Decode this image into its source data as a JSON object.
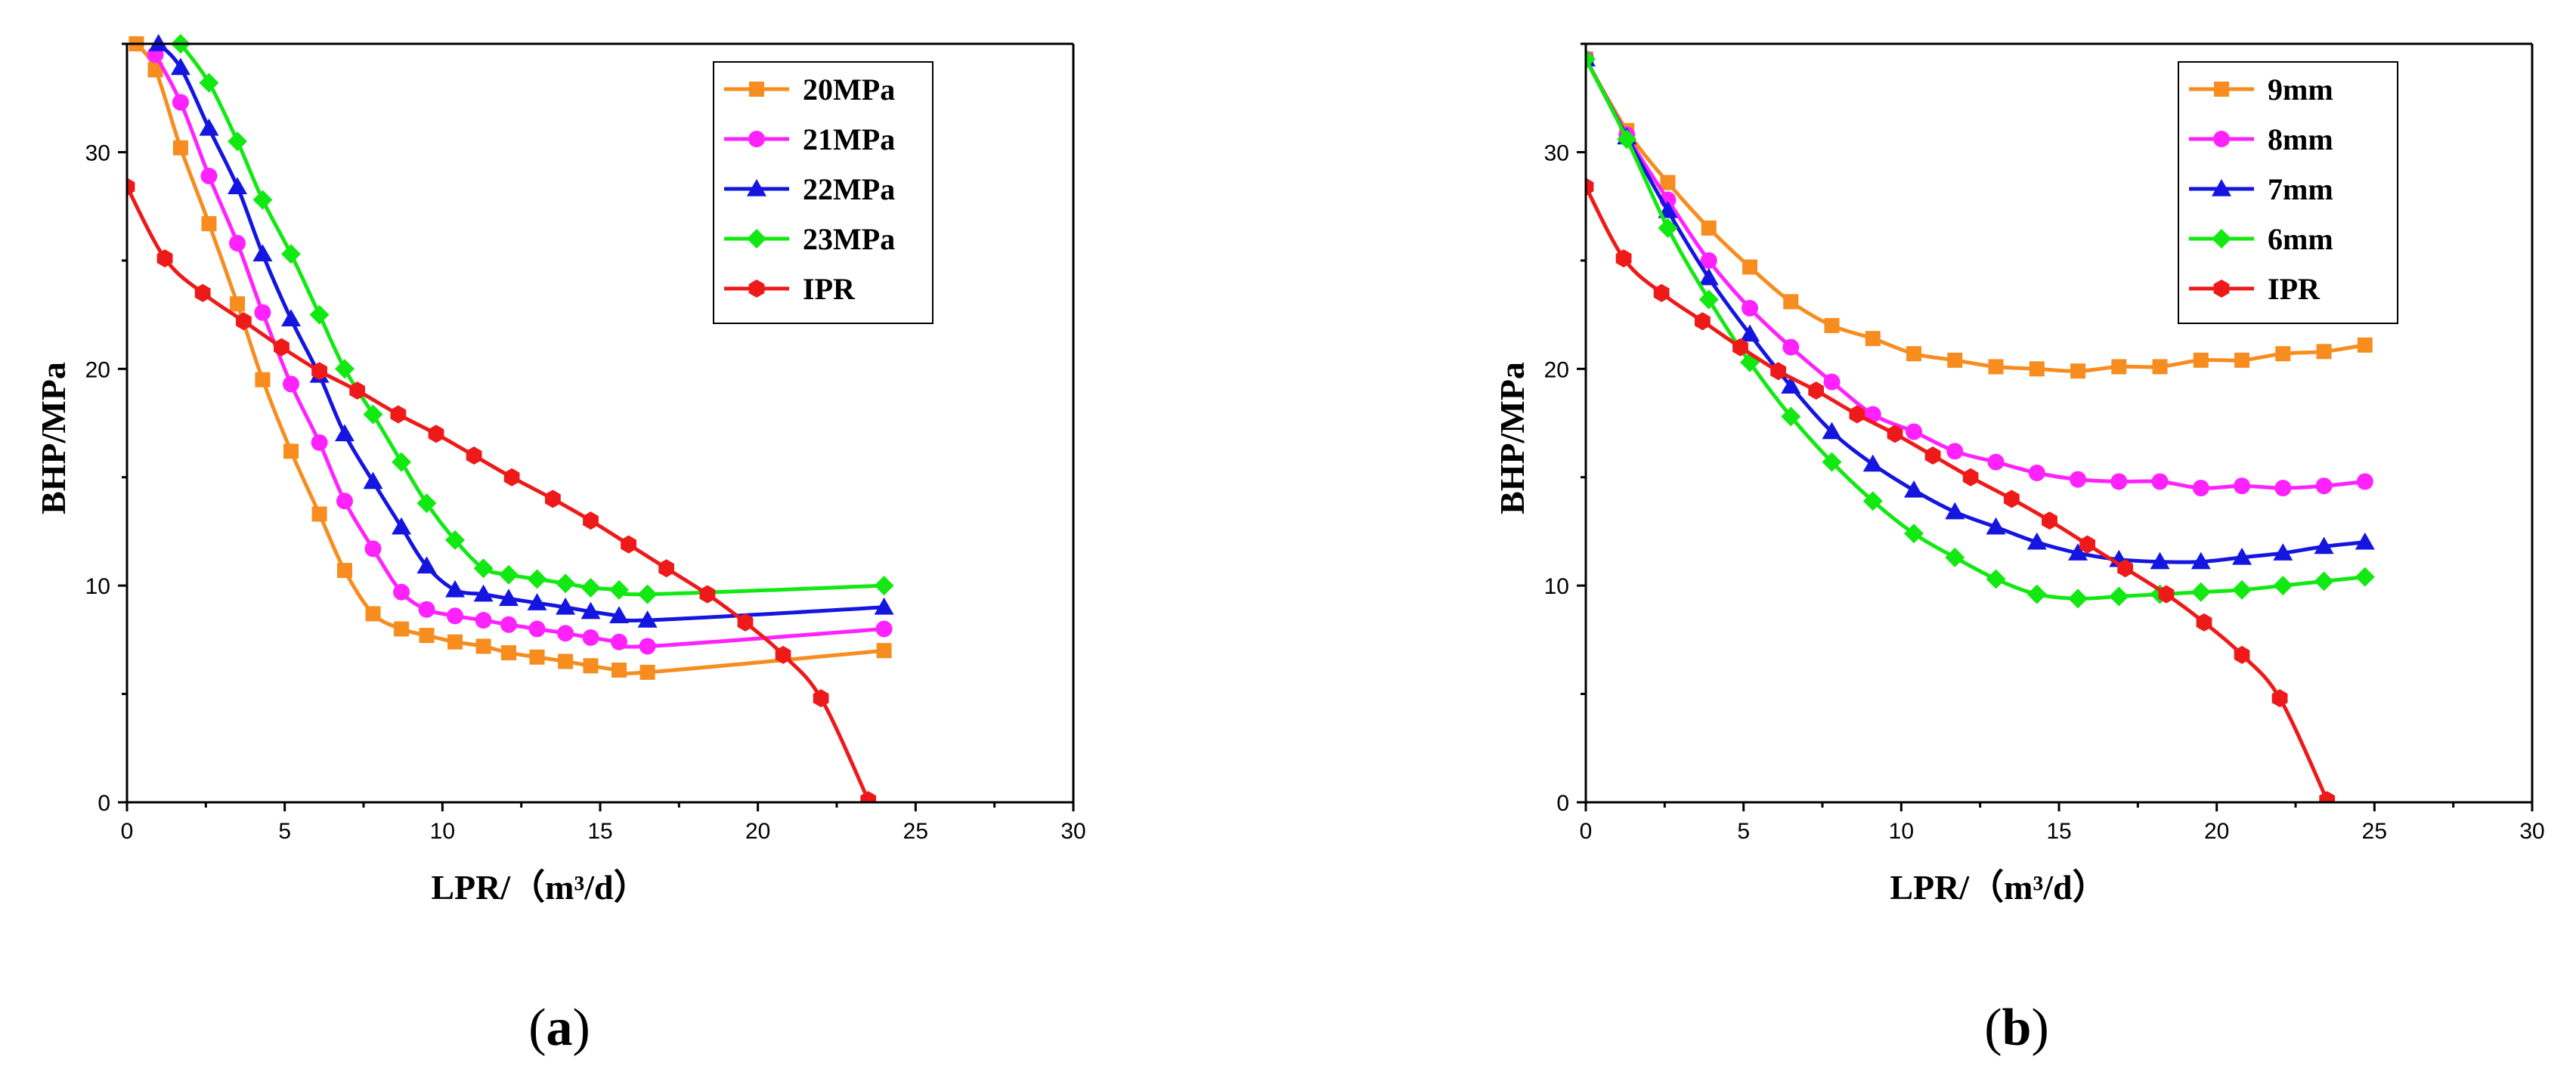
{
  "figure": {
    "caption_a": "a",
    "caption_b": "b"
  },
  "colors": {
    "orange": "#F78C1F",
    "magenta": "#FF22FF",
    "blue": "#1515E0",
    "green": "#12E812",
    "red": "#EE1A1A"
  },
  "chart_data": [
    {
      "id": "a",
      "type": "line",
      "xlabel": "LPR/（m³/d）",
      "ylabel": "BHP/MPa",
      "xlim": [
        0,
        30
      ],
      "ylim": [
        0,
        35
      ],
      "xticks": [
        0,
        5,
        10,
        15,
        20,
        25,
        30
      ],
      "yticks": [
        0,
        10,
        20,
        30
      ],
      "xtick_labels": [
        "0",
        "5",
        "10",
        "15",
        "20",
        "25",
        "30"
      ],
      "ytick_labels": [
        "0",
        "10",
        "20",
        "30"
      ],
      "legend_position": "top-right",
      "series": [
        {
          "name": "20MPa",
          "color": "#F78C1F",
          "marker": "square",
          "x": [
            0.3,
            0.9,
            1.7,
            2.6,
            3.5,
            4.3,
            5.2,
            6.1,
            6.9,
            7.8,
            8.7,
            9.5,
            10.4,
            11.3,
            12.1,
            13.0,
            13.9,
            14.7,
            15.6,
            16.5,
            24.0
          ],
          "y": [
            35.0,
            33.8,
            30.2,
            26.7,
            23.0,
            19.5,
            16.2,
            13.3,
            10.7,
            8.7,
            8.0,
            7.7,
            7.4,
            7.2,
            6.9,
            6.7,
            6.5,
            6.3,
            6.1,
            6.0,
            7.0
          ]
        },
        {
          "name": "21MPa",
          "color": "#FF22FF",
          "marker": "circle",
          "x": [
            0.9,
            1.7,
            2.6,
            3.5,
            4.3,
            5.2,
            6.1,
            6.9,
            7.8,
            8.7,
            9.5,
            10.4,
            11.3,
            12.1,
            13.0,
            13.9,
            14.7,
            15.6,
            16.5,
            24.0
          ],
          "y": [
            34.5,
            32.3,
            28.9,
            25.8,
            22.6,
            19.3,
            16.6,
            13.9,
            11.7,
            9.7,
            8.9,
            8.6,
            8.4,
            8.2,
            8.0,
            7.8,
            7.6,
            7.4,
            7.2,
            8.0
          ]
        },
        {
          "name": "22MPa",
          "color": "#1515E0",
          "marker": "triangle",
          "x": [
            1.0,
            1.7,
            2.6,
            3.5,
            4.3,
            5.2,
            6.1,
            6.9,
            7.8,
            8.7,
            9.5,
            10.4,
            11.3,
            12.1,
            13.0,
            13.9,
            14.7,
            15.6,
            16.5,
            24.0
          ],
          "y": [
            35.0,
            33.9,
            31.1,
            28.4,
            25.3,
            22.3,
            19.7,
            17.0,
            14.8,
            12.7,
            10.9,
            9.8,
            9.6,
            9.4,
            9.2,
            9.0,
            8.8,
            8.6,
            8.4,
            9.0
          ]
        },
        {
          "name": "23MPa",
          "color": "#12E812",
          "marker": "diamond",
          "x": [
            1.7,
            2.6,
            3.5,
            4.3,
            5.2,
            6.1,
            6.9,
            7.8,
            8.7,
            9.5,
            10.4,
            11.3,
            12.1,
            13.0,
            13.9,
            14.7,
            15.6,
            16.5,
            24.0
          ],
          "y": [
            35.0,
            33.2,
            30.5,
            27.8,
            25.3,
            22.5,
            20.0,
            17.9,
            15.7,
            13.8,
            12.1,
            10.8,
            10.5,
            10.3,
            10.1,
            9.9,
            9.8,
            9.6,
            10.0
          ]
        },
        {
          "name": "IPR",
          "color": "#EE1A1A",
          "marker": "hexagon",
          "x": [
            0.0,
            1.2,
            2.4,
            3.7,
            4.9,
            6.1,
            7.3,
            8.6,
            9.8,
            11.0,
            12.2,
            13.5,
            14.7,
            15.9,
            17.1,
            18.4,
            19.6,
            20.8,
            22.0,
            23.5
          ],
          "y": [
            28.4,
            25.1,
            23.5,
            22.2,
            21.0,
            19.9,
            19.0,
            17.9,
            17.0,
            16.0,
            15.0,
            14.0,
            13.0,
            11.9,
            10.8,
            9.6,
            8.3,
            6.8,
            4.8,
            0.1
          ]
        }
      ]
    },
    {
      "id": "b",
      "type": "line",
      "xlabel": "LPR/（m³/d）",
      "ylabel": "BHP/MPa",
      "xlim": [
        0,
        30
      ],
      "ylim": [
        0,
        35
      ],
      "xticks": [
        0,
        5,
        10,
        15,
        20,
        25,
        30
      ],
      "yticks": [
        0,
        10,
        20,
        30
      ],
      "xtick_labels": [
        "0",
        "5",
        "10",
        "15",
        "20",
        "25",
        "30"
      ],
      "ytick_labels": [
        "0",
        "10",
        "20",
        "30"
      ],
      "legend_position": "top-right",
      "series": [
        {
          "name": "9mm",
          "color": "#F78C1F",
          "marker": "square",
          "x": [
            0.0,
            1.3,
            2.6,
            3.9,
            5.2,
            6.5,
            7.8,
            9.1,
            10.4,
            11.7,
            13.0,
            14.3,
            15.6,
            16.9,
            18.2,
            19.5,
            20.8,
            22.1,
            23.4,
            24.7
          ],
          "y": [
            34.3,
            31.0,
            28.6,
            26.5,
            24.7,
            23.1,
            22.0,
            21.4,
            20.7,
            20.4,
            20.1,
            20.0,
            19.9,
            20.1,
            20.1,
            20.4,
            20.4,
            20.7,
            20.8,
            21.1
          ]
        },
        {
          "name": "8mm",
          "color": "#FF22FF",
          "marker": "circle",
          "x": [
            0.0,
            1.3,
            2.6,
            3.9,
            5.2,
            6.5,
            7.8,
            9.1,
            10.4,
            11.7,
            13.0,
            14.3,
            15.6,
            16.9,
            18.2,
            19.5,
            20.8,
            22.1,
            23.4,
            24.7
          ],
          "y": [
            34.3,
            30.8,
            27.8,
            25.0,
            22.8,
            21.0,
            19.4,
            17.9,
            17.1,
            16.2,
            15.7,
            15.2,
            14.9,
            14.8,
            14.8,
            14.5,
            14.6,
            14.5,
            14.6,
            14.8
          ]
        },
        {
          "name": "7mm",
          "color": "#1515E0",
          "marker": "triangle",
          "x": [
            0.0,
            1.3,
            2.6,
            3.9,
            5.2,
            6.5,
            7.8,
            9.1,
            10.4,
            11.7,
            13.0,
            14.3,
            15.6,
            16.9,
            18.2,
            19.5,
            20.8,
            22.1,
            23.4,
            24.7
          ],
          "y": [
            34.3,
            30.7,
            27.3,
            24.2,
            21.6,
            19.2,
            17.1,
            15.6,
            14.4,
            13.4,
            12.7,
            12.0,
            11.5,
            11.2,
            11.1,
            11.1,
            11.3,
            11.5,
            11.8,
            12.0
          ]
        },
        {
          "name": "6mm",
          "color": "#12E812",
          "marker": "diamond",
          "x": [
            0.0,
            1.3,
            2.6,
            3.9,
            5.2,
            6.5,
            7.8,
            9.1,
            10.4,
            11.7,
            13.0,
            14.3,
            15.6,
            16.9,
            18.2,
            19.5,
            20.8,
            22.1,
            23.4,
            24.7
          ],
          "y": [
            34.3,
            30.6,
            26.5,
            23.2,
            20.3,
            17.8,
            15.7,
            13.9,
            12.4,
            11.3,
            10.3,
            9.6,
            9.4,
            9.5,
            9.6,
            9.7,
            9.8,
            10.0,
            10.2,
            10.4
          ]
        },
        {
          "name": "IPR",
          "color": "#EE1A1A",
          "marker": "hexagon",
          "x": [
            0.0,
            1.2,
            2.4,
            3.7,
            4.9,
            6.1,
            7.3,
            8.6,
            9.8,
            11.0,
            12.2,
            13.5,
            14.7,
            15.9,
            17.1,
            18.4,
            19.6,
            20.8,
            22.0,
            23.5
          ],
          "y": [
            28.4,
            25.1,
            23.5,
            22.2,
            21.0,
            19.9,
            19.0,
            17.9,
            17.0,
            16.0,
            15.0,
            14.0,
            13.0,
            11.9,
            10.8,
            9.6,
            8.3,
            6.8,
            4.8,
            0.1
          ]
        }
      ]
    }
  ]
}
